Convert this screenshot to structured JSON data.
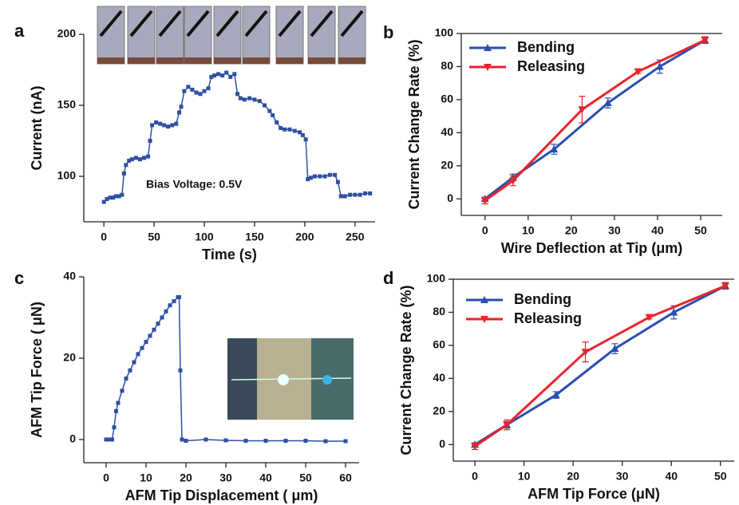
{
  "chart_data": [
    {
      "type": "line",
      "panel_label": "a",
      "x_label": "Time (s)",
      "y_label": "Current (nA)",
      "annotation": "Bias Voltage: 0.5V",
      "xlim": [
        -20,
        270
      ],
      "ylim": [
        68,
        200
      ],
      "xticks": [
        0,
        50,
        100,
        150,
        200,
        250
      ],
      "yticks": [
        100,
        150,
        200
      ],
      "marker": "square",
      "x": [
        0,
        3,
        6,
        9,
        12,
        15,
        18,
        20,
        22,
        25,
        28,
        32,
        36,
        40,
        44,
        46,
        48,
        52,
        56,
        60,
        64,
        68,
        72,
        75,
        77,
        80,
        84,
        88,
        92,
        96,
        100,
        104,
        107,
        110,
        114,
        118,
        122,
        126,
        130,
        133,
        136,
        140,
        145,
        150,
        155,
        160,
        165,
        168,
        172,
        176,
        180,
        185,
        190,
        195,
        198,
        201,
        203,
        206,
        210,
        215,
        220,
        225,
        230,
        233,
        236,
        240,
        245,
        250,
        255,
        260,
        265
      ],
      "series": [
        {
          "color": "#2e4fa3",
          "values": [
            82,
            84,
            85,
            85,
            86,
            86,
            87,
            102,
            108,
            111,
            112,
            113,
            112,
            113,
            114,
            125,
            136,
            138,
            137,
            136,
            135,
            136,
            137,
            145,
            149,
            160,
            163,
            161,
            159,
            158,
            160,
            162,
            170,
            171,
            172,
            171,
            173,
            170,
            172,
            158,
            155,
            154,
            155,
            154,
            153,
            150,
            146,
            143,
            138,
            134,
            133,
            133,
            132,
            131,
            129,
            126,
            98,
            99,
            100,
            100,
            100,
            101,
            101,
            96,
            86,
            86,
            87,
            87,
            87,
            88,
            88
          ]
        }
      ]
    },
    {
      "type": "line",
      "panel_label": "b",
      "x_label": "Wire Deflection at Tip (μm)",
      "y_label": "Current Change Rate (%)",
      "xlim": [
        -5.5,
        55
      ],
      "ylim": [
        -10,
        100
      ],
      "xticks": [
        0,
        10,
        20,
        30,
        40,
        50
      ],
      "yticks": [
        0,
        20,
        40,
        60,
        80,
        100
      ],
      "legend": "upper left",
      "series": [
        {
          "name": "Bending",
          "color": "#2b4fb0",
          "marker": "triangle-up",
          "x": [
            0,
            6.5,
            16,
            28.5,
            40.5,
            51
          ],
          "values": [
            0,
            13,
            30,
            58,
            80,
            96
          ],
          "errors": [
            1,
            2,
            3,
            3,
            4,
            2
          ]
        },
        {
          "name": "Releasing",
          "color": "#e8232b",
          "marker": "triangle-down",
          "x": [
            0,
            6.5,
            22.5,
            35.5,
            51
          ],
          "values": [
            -1,
            11,
            54,
            77,
            96
          ],
          "errors": [
            2,
            3,
            8,
            1,
            2
          ]
        }
      ]
    },
    {
      "type": "line",
      "panel_label": "c",
      "x_label": "AFM Tip Displacement ( μm)",
      "y_label": "AFM Tip Force ( μN)",
      "xlim": [
        -5.6,
        63.4
      ],
      "ylim": [
        -5.7,
        40
      ],
      "xticks": [
        0,
        10,
        20,
        30,
        40,
        50,
        60
      ],
      "yticks": [
        0,
        20,
        40
      ],
      "marker": "square",
      "x": [
        0,
        1,
        1.5,
        2,
        2.5,
        3,
        4,
        5,
        6,
        7,
        8,
        9,
        10,
        11,
        12,
        13,
        14,
        15,
        16,
        17,
        18,
        18.3,
        18.6,
        19,
        20,
        25,
        30,
        35,
        40,
        45,
        50,
        55,
        60
      ],
      "series": [
        {
          "color": "#2e4fa3",
          "values": [
            0,
            0,
            0,
            3,
            7,
            9,
            12,
            15,
            17,
            19,
            21,
            22.5,
            24,
            25.5,
            27,
            28.5,
            30,
            31.5,
            33,
            34,
            35,
            35,
            17,
            0,
            -0.3,
            0,
            -0.2,
            -0.3,
            -0.3,
            -0.3,
            -0.3,
            -0.4,
            -0.4
          ]
        }
      ]
    },
    {
      "type": "line",
      "panel_label": "d",
      "x_label": "AFM Tip Force (μN)",
      "y_label": "Current Change Rate (%)",
      "xlim": [
        -4.4,
        52.8
      ],
      "ylim": [
        -10,
        100
      ],
      "xticks": [
        0,
        10,
        20,
        30,
        40,
        50
      ],
      "yticks": [
        0,
        20,
        40,
        60,
        80,
        100
      ],
      "legend": "upper left",
      "series": [
        {
          "name": "Bending",
          "color": "#2b4fb0",
          "marker": "triangle-up",
          "x": [
            0,
            6.5,
            16.5,
            28.5,
            40.5,
            51
          ],
          "values": [
            0,
            12,
            30,
            58,
            80,
            96
          ],
          "errors": [
            1,
            2,
            2,
            3,
            4,
            2
          ]
        },
        {
          "name": "Releasing",
          "color": "#e8232b",
          "marker": "triangle-down",
          "x": [
            0,
            6.5,
            22.5,
            35.5,
            51
          ],
          "values": [
            -1,
            12,
            56,
            77,
            96
          ],
          "errors": [
            2,
            3,
            6,
            1,
            2
          ]
        }
      ]
    }
  ]
}
